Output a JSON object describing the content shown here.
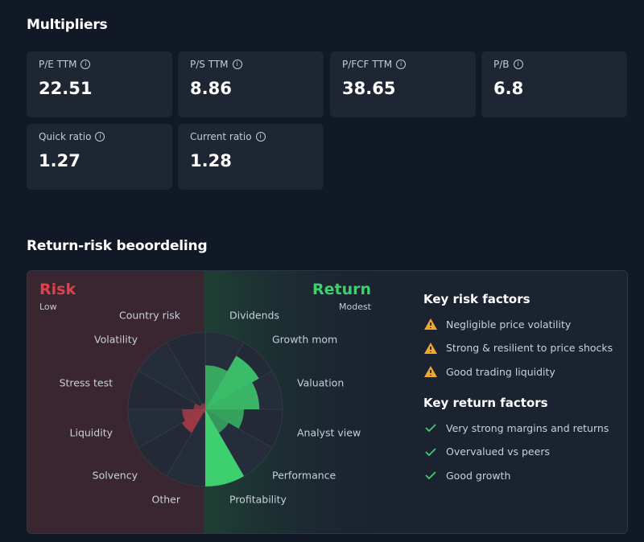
{
  "multipliers": {
    "title": "Multipliers",
    "cards": [
      {
        "label": "P/E TTM",
        "value": 22.51
      },
      {
        "label": "P/S TTM",
        "value": 8.86
      },
      {
        "label": "P/FCF TTM",
        "value": 38.65
      },
      {
        "label": "P/B",
        "value": 6.8
      },
      {
        "label": "Quick ratio",
        "value": 1.27
      },
      {
        "label": "Current ratio",
        "value": 1.28
      }
    ]
  },
  "return_risk": {
    "title": "Return-risk beoordeling",
    "risk": {
      "title": "Risk",
      "level": "Low",
      "color": "#e0404a",
      "factors": [
        "Country risk",
        "Volatility",
        "Stress test",
        "Liquidity",
        "Solvency",
        "Other"
      ],
      "values": [
        8,
        8,
        15,
        30,
        35,
        5
      ]
    },
    "return": {
      "title": "Return",
      "level": "Modest",
      "color": "#3ecf6e",
      "factors": [
        "Dividends",
        "Growth mom",
        "Valuation",
        "Analyst view",
        "Performance",
        "Profitability"
      ],
      "values": [
        57,
        80,
        70,
        50,
        35,
        100
      ]
    },
    "rlim": [
      0,
      100
    ],
    "key_risk": {
      "title": "Key risk factors",
      "items": [
        "Negligible price volatility",
        "Strong & resilient to price shocks",
        "Good trading liquidity"
      ]
    },
    "key_return": {
      "title": "Key return factors",
      "items": [
        "Very strong margins and returns",
        "Overvalued vs peers",
        "Good growth"
      ]
    }
  }
}
